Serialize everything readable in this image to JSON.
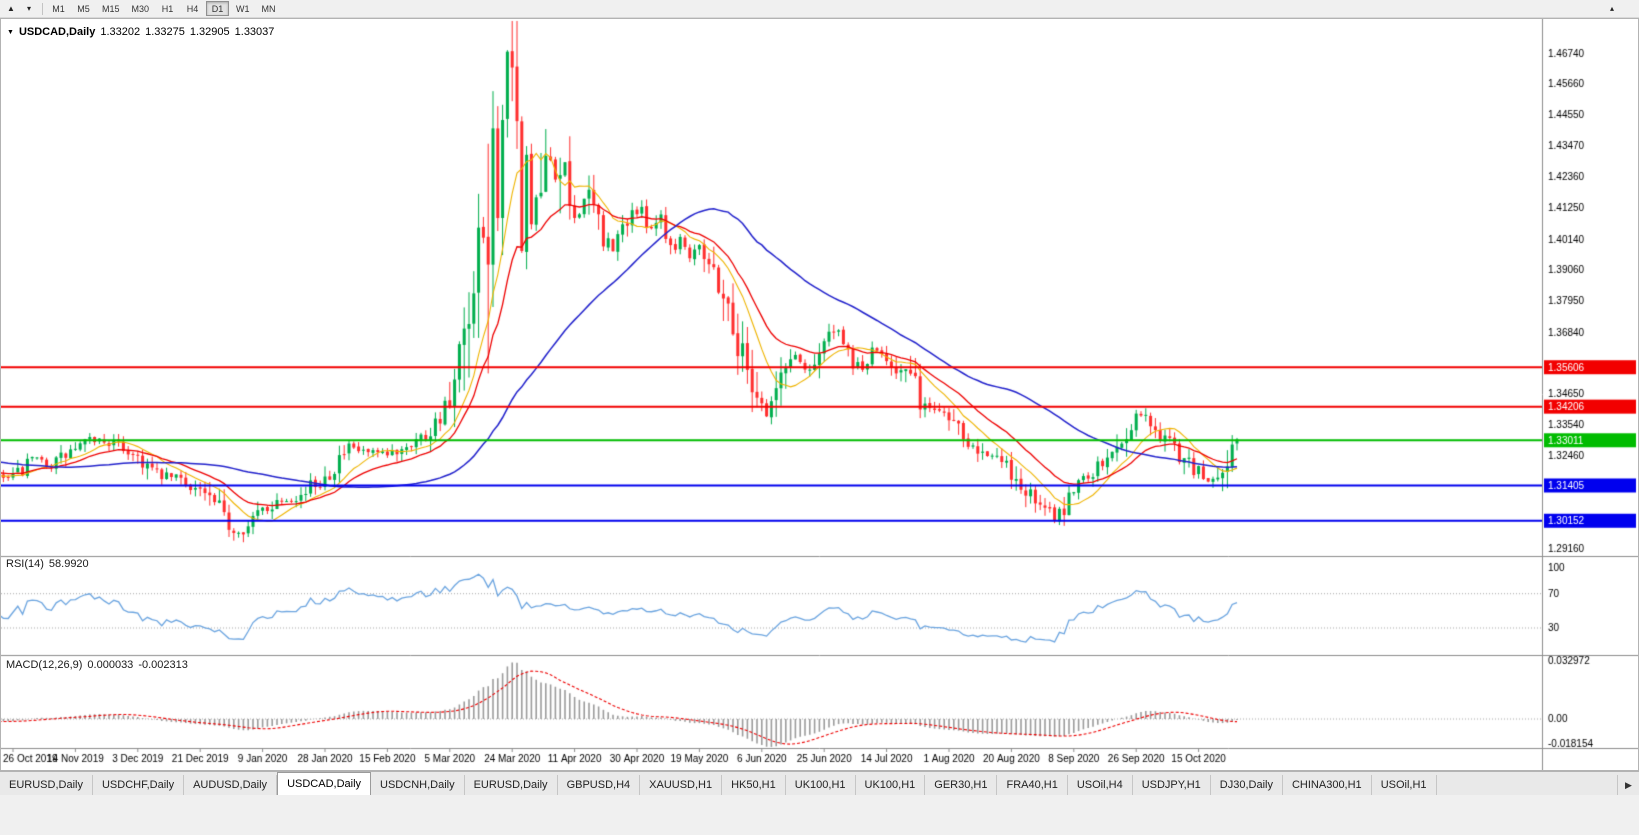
{
  "colors": {
    "up": "#00AE4D",
    "down": "#FF2E2E",
    "background": "#FFFFFF",
    "axis_text": "#000000",
    "separator": "#8c8c8c",
    "level_dotted": "#a6a6a6"
  },
  "toolbar": {
    "timeframes": [
      "M1",
      "M5",
      "M15",
      "M30",
      "H1",
      "H4",
      "D1",
      "W1",
      "MN"
    ],
    "active_timeframe": "D1",
    "cursor_icon": "▲",
    "dropdown_icon": "▾",
    "scroll_up_icon": "▴"
  },
  "chart_window": {
    "title_symbol": "USDCAD,Daily",
    "dropdown_glyph": "▼",
    "ohlc": {
      "open": "1.33202",
      "high": "1.33275",
      "low": "1.32905",
      "close": "1.33037"
    }
  },
  "chart_data": {
    "type": "candlestick",
    "symbol": "USDCAD",
    "timeframe": "Daily",
    "count": 256,
    "price_axis": {
      "min": 1.289,
      "max": 1.478,
      "ticks": [
        1.4674,
        1.4566,
        1.4455,
        1.4347,
        1.4236,
        1.4125,
        1.4014,
        1.3906,
        1.3795,
        1.3684,
        1.3576,
        1.3465,
        1.3354,
        1.3246,
        1.3135,
        1.3024,
        1.2916
      ]
    },
    "time_axis": {
      "labels": [
        {
          "i": 0,
          "t": "26 Oct 2019"
        },
        {
          "i": 13,
          "t": "14 Nov 2019"
        },
        {
          "i": 26,
          "t": "3 Dec 2019"
        },
        {
          "i": 39,
          "t": "21 Dec 2019"
        },
        {
          "i": 52,
          "t": "9 Jan 2020"
        },
        {
          "i": 65,
          "t": "28 Jan 2020"
        },
        {
          "i": 78,
          "t": "15 Feb 2020"
        },
        {
          "i": 91,
          "t": "5 Mar 2020"
        },
        {
          "i": 104,
          "t": "24 Mar 2020"
        },
        {
          "i": 117,
          "t": "11 Apr 2020"
        },
        {
          "i": 130,
          "t": "30 Apr 2020"
        },
        {
          "i": 143,
          "t": "19 May 2020"
        },
        {
          "i": 156,
          "t": "6 Jun 2020"
        },
        {
          "i": 169,
          "t": "25 Jun 2020"
        },
        {
          "i": 182,
          "t": "14 Jul 2020"
        },
        {
          "i": 195,
          "t": "1 Aug 2020"
        },
        {
          "i": 208,
          "t": "20 Aug 2020"
        },
        {
          "i": 221,
          "t": "8 Sep 2020"
        },
        {
          "i": 234,
          "t": "26 Sep 2020"
        },
        {
          "i": 247,
          "t": "15 Oct 2020"
        }
      ]
    },
    "hlines": [
      {
        "price": 1.35606,
        "label": "1.35606",
        "color": "#F20000",
        "width": 2
      },
      {
        "price": 1.34206,
        "label": "1.34206",
        "color": "#F20000",
        "width": 2
      },
      {
        "price": 1.33011,
        "label": "1.33011",
        "color": "#00BC00",
        "width": 2
      },
      {
        "price": 1.31405,
        "label": "1.31405",
        "color": "#0000EE",
        "width": 2
      },
      {
        "price": 1.30152,
        "label": "1.30152",
        "color": "#0000EE",
        "width": 2
      }
    ],
    "moving_averages": [
      {
        "period": 10,
        "type": "sma",
        "color": "#EFB400",
        "width": 1.1
      },
      {
        "period": 20,
        "type": "ema",
        "color": "#EE0000",
        "width": 1.3
      },
      {
        "period": 50,
        "type": "sma",
        "color": "#2222CC",
        "width": 1.5
      }
    ],
    "anchors": [
      [
        -60,
        1.3245
      ],
      [
        -45,
        1.329
      ],
      [
        -30,
        1.3225
      ],
      [
        -15,
        1.3185
      ],
      [
        -5,
        1.317
      ],
      [
        0,
        1.3165
      ],
      [
        4,
        1.323
      ],
      [
        8,
        1.3215
      ],
      [
        13,
        1.327
      ],
      [
        17,
        1.3305
      ],
      [
        21,
        1.329
      ],
      [
        26,
        1.3245
      ],
      [
        30,
        1.3175
      ],
      [
        34,
        1.317
      ],
      [
        39,
        1.3125
      ],
      [
        43,
        1.305
      ],
      [
        46,
        1.298
      ],
      [
        49,
        1.2995
      ],
      [
        52,
        1.3055
      ],
      [
        56,
        1.3095
      ],
      [
        60,
        1.3105
      ],
      [
        65,
        1.3175
      ],
      [
        70,
        1.327
      ],
      [
        74,
        1.3255
      ],
      [
        78,
        1.3245
      ],
      [
        82,
        1.329
      ],
      [
        86,
        1.332
      ],
      [
        89,
        1.339
      ],
      [
        91,
        1.342
      ],
      [
        93,
        1.354
      ],
      [
        95,
        1.365
      ],
      [
        97,
        1.382
      ],
      [
        99,
        1.408
      ],
      [
        101,
        1.436
      ],
      [
        103,
        1.463
      ],
      [
        104,
        1.448
      ],
      [
        105,
        1.43
      ],
      [
        106,
        1.415
      ],
      [
        107,
        1.425
      ],
      [
        108,
        1.409
      ],
      [
        110,
        1.418
      ],
      [
        112,
        1.43
      ],
      [
        114,
        1.423
      ],
      [
        116,
        1.414
      ],
      [
        117,
        1.409
      ],
      [
        119,
        1.416
      ],
      [
        121,
        1.412
      ],
      [
        123,
        1.403
      ],
      [
        125,
        1.397
      ],
      [
        127,
        1.406
      ],
      [
        129,
        1.412
      ],
      [
        131,
        1.41
      ],
      [
        133,
        1.406
      ],
      [
        135,
        1.41
      ],
      [
        137,
        1.399
      ],
      [
        139,
        1.402
      ],
      [
        141,
        1.396
      ],
      [
        143,
        1.401
      ],
      [
        145,
        1.393
      ],
      [
        147,
        1.387
      ],
      [
        149,
        1.377
      ],
      [
        151,
        1.365
      ],
      [
        153,
        1.356
      ],
      [
        155,
        1.348
      ],
      [
        157,
        1.339
      ],
      [
        159,
        1.348
      ],
      [
        161,
        1.356
      ],
      [
        163,
        1.361
      ],
      [
        165,
        1.355
      ],
      [
        167,
        1.359
      ],
      [
        169,
        1.365
      ],
      [
        171,
        1.3695
      ],
      [
        173,
        1.362
      ],
      [
        175,
        1.358
      ],
      [
        177,
        1.3555
      ],
      [
        179,
        1.3605
      ],
      [
        181,
        1.3615
      ],
      [
        183,
        1.358
      ],
      [
        185,
        1.3545
      ],
      [
        187,
        1.3525
      ],
      [
        189,
        1.345
      ],
      [
        191,
        1.3405
      ],
      [
        193,
        1.342
      ],
      [
        195,
        1.339
      ],
      [
        197,
        1.336
      ],
      [
        199,
        1.331
      ],
      [
        201,
        1.328
      ],
      [
        203,
        1.326
      ],
      [
        205,
        1.323
      ],
      [
        207,
        1.3205
      ],
      [
        209,
        1.316
      ],
      [
        211,
        1.312
      ],
      [
        213,
        1.308
      ],
      [
        215,
        1.3055
      ],
      [
        217,
        1.3025
      ],
      [
        219,
        1.306
      ],
      [
        221,
        1.314
      ],
      [
        223,
        1.317
      ],
      [
        225,
        1.3195
      ],
      [
        227,
        1.3215
      ],
      [
        229,
        1.325
      ],
      [
        231,
        1.331
      ],
      [
        233,
        1.3365
      ],
      [
        235,
        1.34
      ],
      [
        237,
        1.3355
      ],
      [
        239,
        1.332
      ],
      [
        241,
        1.3295
      ],
      [
        243,
        1.3255
      ],
      [
        245,
        1.3215
      ],
      [
        247,
        1.3185
      ],
      [
        249,
        1.3155
      ],
      [
        251,
        1.317
      ],
      [
        253,
        1.323
      ],
      [
        254,
        1.329
      ],
      [
        255,
        1.3304
      ]
    ],
    "indicators": {
      "rsi": {
        "label": "RSI(14)",
        "value": "58.9920",
        "period": 14,
        "color": "#6CA5E0",
        "axis": [
          {
            "v": 100,
            "t": "100"
          },
          {
            "v": 70,
            "t": "70"
          },
          {
            "v": 30,
            "t": "30"
          }
        ],
        "level_lines": [
          70,
          30
        ]
      },
      "macd": {
        "label": "MACD(12,26,9)",
        "value_main": "0.000033",
        "value_signal": "-0.002313",
        "fast": 12,
        "slow": 26,
        "signal": 9,
        "hist_color": "#9b9b9b",
        "signal_color": "#EE0000",
        "axis": [
          {
            "v": 0.032972,
            "t": "0.032972"
          },
          {
            "v": 0,
            "t": "0.00"
          },
          {
            "v": -0.018154,
            "t": "-0.018154"
          }
        ]
      }
    }
  },
  "tabs": {
    "items": [
      "EURUSD,Daily",
      "USDCHF,Daily",
      "AUDUSD,Daily",
      "USDCAD,Daily",
      "USDCNH,Daily",
      "EURUSD,Daily",
      "GBPUSD,H4",
      "XAUUSD,H1",
      "HK50,H1",
      "UK100,H1",
      "UK100,H1",
      "GER30,H1",
      "FRA40,H1",
      "USOil,H4",
      "USDJPY,H1",
      "DJ30,Daily",
      "CHINA300,H1",
      "USOil,H1"
    ],
    "active_index": 3,
    "scroll_right_icon": "▶"
  }
}
